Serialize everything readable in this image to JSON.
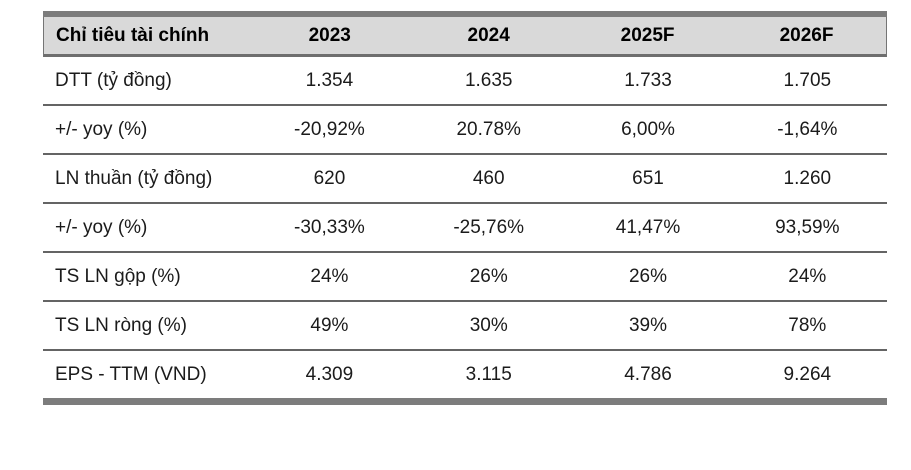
{
  "chart_data": {
    "type": "table",
    "title": "Chỉ tiêu tài chính",
    "header": {
      "label": "Chỉ tiêu tài chính",
      "columns": [
        "2023",
        "2024",
        "2025F",
        "2026F"
      ]
    },
    "rows": [
      {
        "label": "DTT (tỷ đồng)",
        "values": [
          "1.354",
          "1.635",
          "1.733",
          "1.705"
        ]
      },
      {
        "label": "+/- yoy (%)",
        "values": [
          "-20,92%",
          "20.78%",
          "6,00%",
          "-1,64%"
        ]
      },
      {
        "label": "LN thuần (tỷ đồng)",
        "values": [
          "620",
          "460",
          "651",
          "1.260"
        ]
      },
      {
        "label": "+/- yoy (%)",
        "values": [
          "-30,33%",
          "-25,76%",
          "41,47%",
          "93,59%"
        ]
      },
      {
        "label": "TS LN gộp (%)",
        "values": [
          "24%",
          "26%",
          "26%",
          "24%"
        ]
      },
      {
        "label": "TS LN ròng (%)",
        "values": [
          "49%",
          "30%",
          "39%",
          "78%"
        ]
      },
      {
        "label": "EPS - TTM (VND)",
        "values": [
          "4.309",
          "3.115",
          "4.786",
          "9.264"
        ]
      }
    ],
    "layout_hints": {
      "first_column_align": "left",
      "value_columns_align": "center",
      "grid": "horizontal-rules-only"
    }
  },
  "colors": {
    "header_background": "#d9d9d9",
    "frame_bar": "#7c7c7c",
    "row_border": "#646464",
    "text": "#1b1b1b"
  }
}
